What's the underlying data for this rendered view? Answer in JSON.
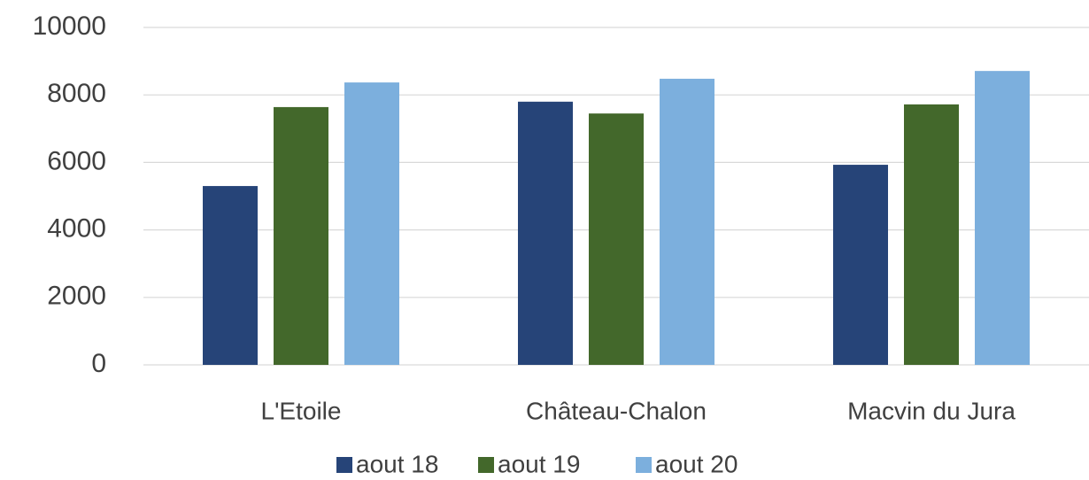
{
  "chart_data": {
    "type": "bar",
    "categories": [
      "L'Etoile",
      "Château-Chalon",
      "Macvin du Jura"
    ],
    "series": [
      {
        "name": "aout 18",
        "color": "#264478",
        "values": [
          5300,
          7800,
          5930
        ]
      },
      {
        "name": "aout 19",
        "color": "#43682b",
        "values": [
          7640,
          7450,
          7720
        ]
      },
      {
        "name": "aout 20",
        "color": "#7cafdd",
        "values": [
          8370,
          8480,
          8710
        ]
      }
    ],
    "ylim": [
      0,
      10000
    ],
    "yticks": [
      0,
      2000,
      4000,
      6000,
      8000,
      10000
    ],
    "grid": true,
    "legend": "bottom"
  }
}
